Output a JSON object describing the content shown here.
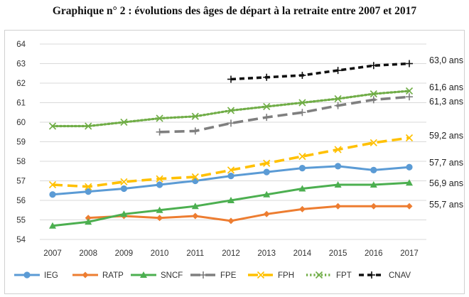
{
  "title": "Graphique n° 2 : évolutions des âges de départ à la retraite entre 2007 et 2017",
  "chart_data": {
    "type": "line",
    "title": "Graphique n° 2 : évolutions des âges de départ à la retraite entre 2007 et 2017",
    "xlabel": "",
    "ylabel": "",
    "x": [
      2007,
      2008,
      2009,
      2010,
      2011,
      2012,
      2013,
      2014,
      2015,
      2016,
      2017
    ],
    "ylim": [
      54,
      64
    ],
    "yticks": [
      54,
      55,
      56,
      57,
      58,
      59,
      60,
      61,
      62,
      63,
      64
    ],
    "grid": "horizontal",
    "legend_position": "bottom",
    "series": [
      {
        "name": "IEG",
        "color": "#5b9bd5",
        "style": "solid",
        "marker": "circle",
        "values": [
          56.3,
          56.45,
          56.6,
          56.8,
          57.0,
          57.25,
          57.45,
          57.65,
          57.75,
          57.55,
          57.7
        ],
        "end_label": "57,7 ans"
      },
      {
        "name": "RATP",
        "color": "#ed7d31",
        "style": "solid",
        "marker": "diamond",
        "values": [
          null,
          55.1,
          55.2,
          55.1,
          55.2,
          54.95,
          55.3,
          55.55,
          55.7,
          55.7,
          55.7
        ],
        "end_label": "55,7 ans"
      },
      {
        "name": "SNCF",
        "color": "#4caf50",
        "style": "solid",
        "marker": "triangle",
        "values": [
          54.7,
          54.9,
          55.3,
          55.5,
          55.7,
          56.0,
          56.3,
          56.6,
          56.8,
          56.8,
          56.9
        ],
        "end_label": "56,9 ans"
      },
      {
        "name": "FPE",
        "color": "#7f7f7f",
        "style": "longdash",
        "marker": "plus",
        "values": [
          null,
          null,
          null,
          59.5,
          59.55,
          59.95,
          60.25,
          60.5,
          60.85,
          61.15,
          61.3
        ],
        "end_label": "61,3 ans"
      },
      {
        "name": "FPH",
        "color": "#ffc000",
        "style": "longdash",
        "marker": "x",
        "values": [
          56.8,
          56.7,
          56.95,
          57.1,
          57.2,
          57.55,
          57.9,
          58.25,
          58.6,
          58.95,
          59.2
        ],
        "end_label": "59,2 ans"
      },
      {
        "name": "FPT",
        "color": "#70ad47",
        "style": "dotted",
        "marker": "x",
        "values": [
          59.8,
          59.8,
          60.0,
          60.2,
          60.3,
          60.6,
          60.8,
          61.0,
          61.2,
          61.45,
          61.6
        ],
        "end_label": "61,6 ans"
      },
      {
        "name": "CNAV",
        "color": "#111111",
        "style": "dash",
        "marker": "plus",
        "values": [
          null,
          null,
          null,
          null,
          null,
          62.2,
          62.3,
          62.4,
          62.65,
          62.9,
          63.0
        ],
        "end_label": "63,0 ans"
      }
    ]
  }
}
